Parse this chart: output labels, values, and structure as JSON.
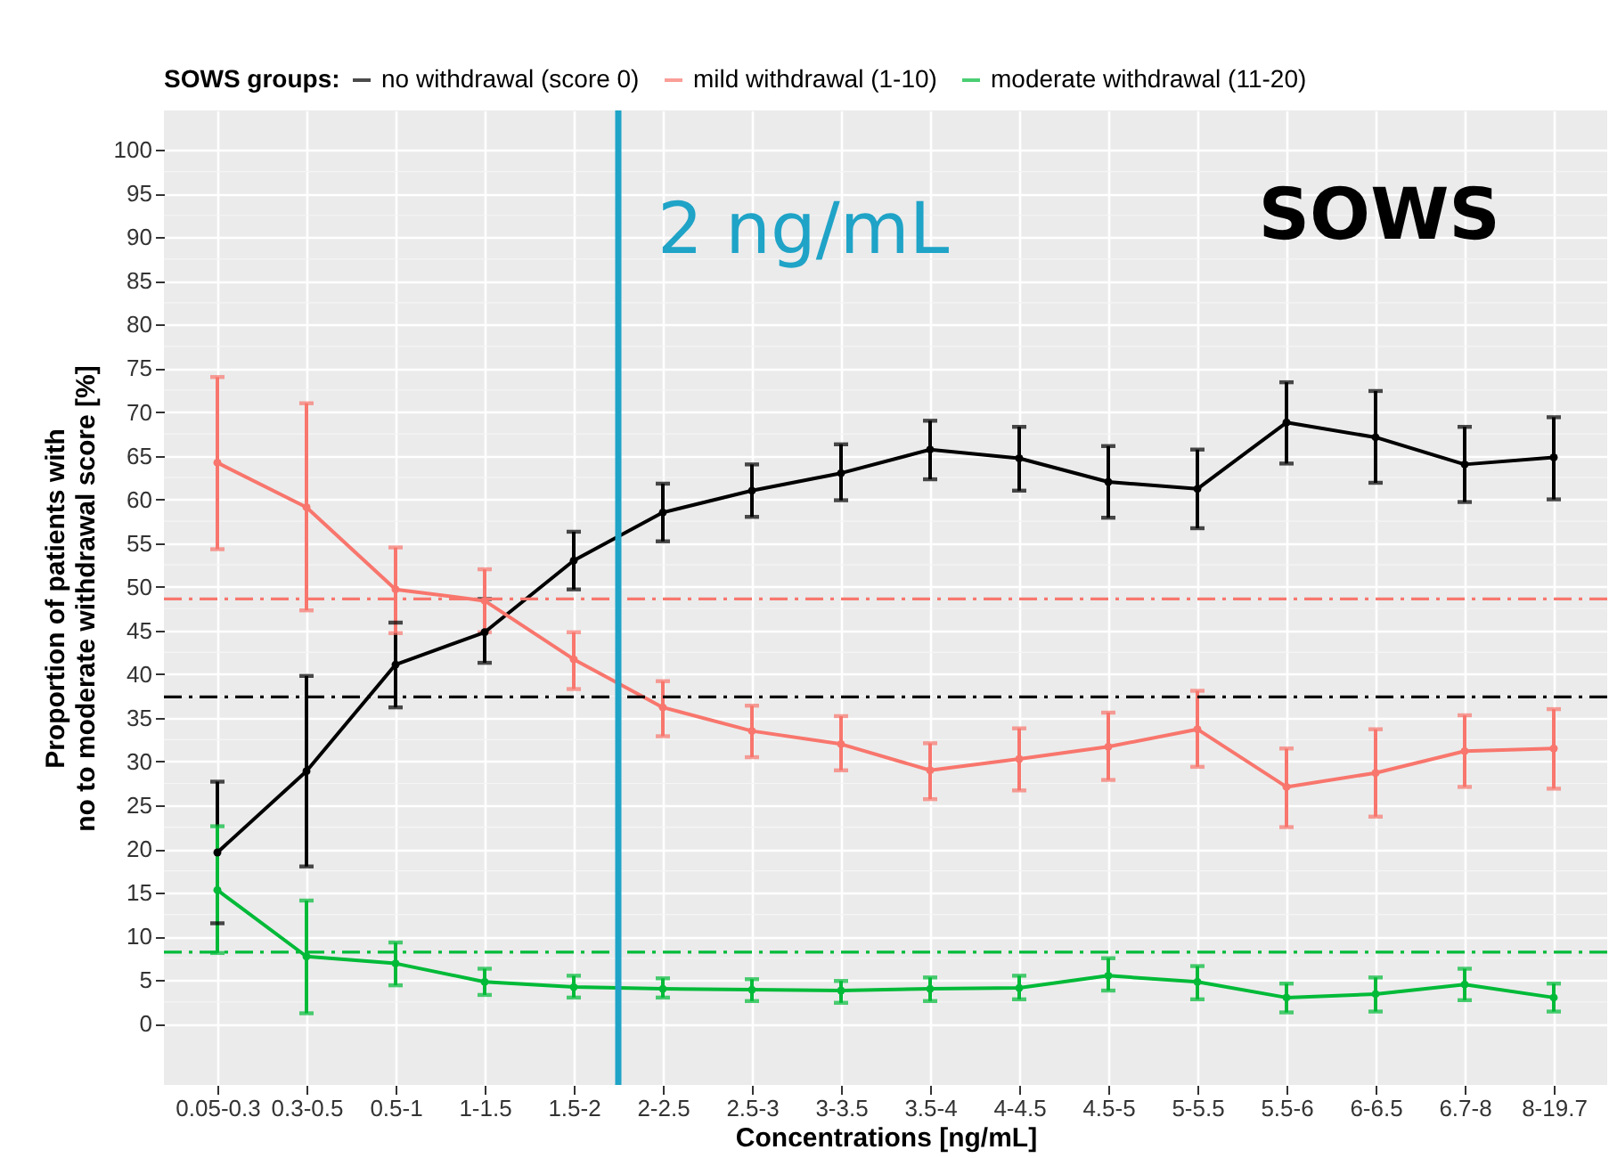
{
  "chart_data": {
    "type": "line",
    "xlabel": "Concentrations [ng/mL]",
    "ylabel": "Proportion of patients with\nno to moderate withdrawal score [%]",
    "legend_title": "SOWS groups:",
    "legend": "top",
    "grid": true,
    "marker": "circle",
    "categories": [
      "0.05-0.3",
      "0.3-0.5",
      "0.5-1",
      "1-1.5",
      "1.5-2",
      "2-2.5",
      "2.5-3",
      "3-3.5",
      "3.5-4",
      "4-4.5",
      "4.5-5",
      "5-5.5",
      "5.5-6",
      "6-6.5",
      "6.7-8",
      "8-19.7"
    ],
    "ylim": [
      -7,
      104.5
    ],
    "yticks": [
      0,
      5,
      10,
      15,
      20,
      25,
      30,
      35,
      40,
      45,
      50,
      55,
      60,
      65,
      70,
      75,
      80,
      85,
      90,
      95,
      100
    ],
    "series": [
      {
        "name": "no withdrawal (score 0)",
        "color": "#000000",
        "values": [
          19.6,
          28.9,
          41.1,
          44.8,
          53.0,
          58.5,
          61.0,
          63.0,
          65.7,
          64.7,
          62.0,
          61.2,
          68.8,
          67.1,
          64.0,
          64.8
        ],
        "errors": [
          [
            11.5,
            27.7
          ],
          [
            18.0,
            39.8
          ],
          [
            36.2,
            45.9
          ],
          [
            41.3,
            48.6
          ],
          [
            49.7,
            56.3
          ],
          [
            55.2,
            61.8
          ],
          [
            58.0,
            64.0
          ],
          [
            59.9,
            66.3
          ],
          [
            62.3,
            69.0
          ],
          [
            61.0,
            68.3
          ],
          [
            57.9,
            66.1
          ],
          [
            56.7,
            65.7
          ],
          [
            64.1,
            73.4
          ],
          [
            61.9,
            72.4
          ],
          [
            59.7,
            68.3
          ],
          [
            60.0,
            69.4
          ]
        ]
      },
      {
        "name": "mild withdrawal (1-10)",
        "color": "#f8766d",
        "values": [
          64.2,
          59.1,
          49.7,
          48.4,
          41.7,
          36.2,
          33.5,
          32.0,
          29.0,
          30.3,
          31.7,
          33.7,
          27.1,
          28.7,
          31.2,
          31.5
        ],
        "errors": [
          [
            54.3,
            74.0
          ],
          [
            47.3,
            71.0
          ],
          [
            44.7,
            54.5
          ],
          [
            44.8,
            52.0
          ],
          [
            38.3,
            44.8
          ],
          [
            32.9,
            39.2
          ],
          [
            30.5,
            36.4
          ],
          [
            29.0,
            35.2
          ],
          [
            25.7,
            32.1
          ],
          [
            26.7,
            33.8
          ],
          [
            27.9,
            35.6
          ],
          [
            29.4,
            38.1
          ],
          [
            22.5,
            31.5
          ],
          [
            23.7,
            33.7
          ],
          [
            27.1,
            35.3
          ],
          [
            26.9,
            36.0
          ]
        ]
      },
      {
        "name": "moderate withdrawal (11-20)",
        "color": "#00ba38",
        "values": [
          15.3,
          7.7,
          6.9,
          4.8,
          4.2,
          4.0,
          3.9,
          3.8,
          4.0,
          4.1,
          5.5,
          4.8,
          3.0,
          3.4,
          4.5,
          3.0
        ],
        "errors": [
          [
            8.1,
            22.6
          ],
          [
            1.2,
            14.1
          ],
          [
            4.4,
            9.3
          ],
          [
            3.3,
            6.3
          ],
          [
            3.0,
            5.5
          ],
          [
            3.0,
            5.2
          ],
          [
            2.6,
            5.1
          ],
          [
            2.4,
            4.9
          ],
          [
            2.6,
            5.3
          ],
          [
            2.8,
            5.5
          ],
          [
            3.8,
            7.5
          ],
          [
            2.8,
            6.6
          ],
          [
            1.3,
            4.6
          ],
          [
            1.4,
            5.3
          ],
          [
            2.7,
            6.3
          ],
          [
            1.4,
            4.6
          ]
        ]
      }
    ],
    "ref_lines": [
      {
        "axis": "y",
        "value": 48.6,
        "color": "#f8766d",
        "line_style": "dashed"
      },
      {
        "axis": "y",
        "value": 37.4,
        "color": "#000000",
        "line_style": "dashed"
      },
      {
        "axis": "y",
        "value": 8.2,
        "color": "#00ba38",
        "line_style": "dashed"
      },
      {
        "axis": "x",
        "value": "2-2.5",
        "label": "2 ng/mL",
        "color": "#1fa3c7",
        "line_style": "solid"
      }
    ],
    "annotations": [
      "SOWS"
    ]
  }
}
